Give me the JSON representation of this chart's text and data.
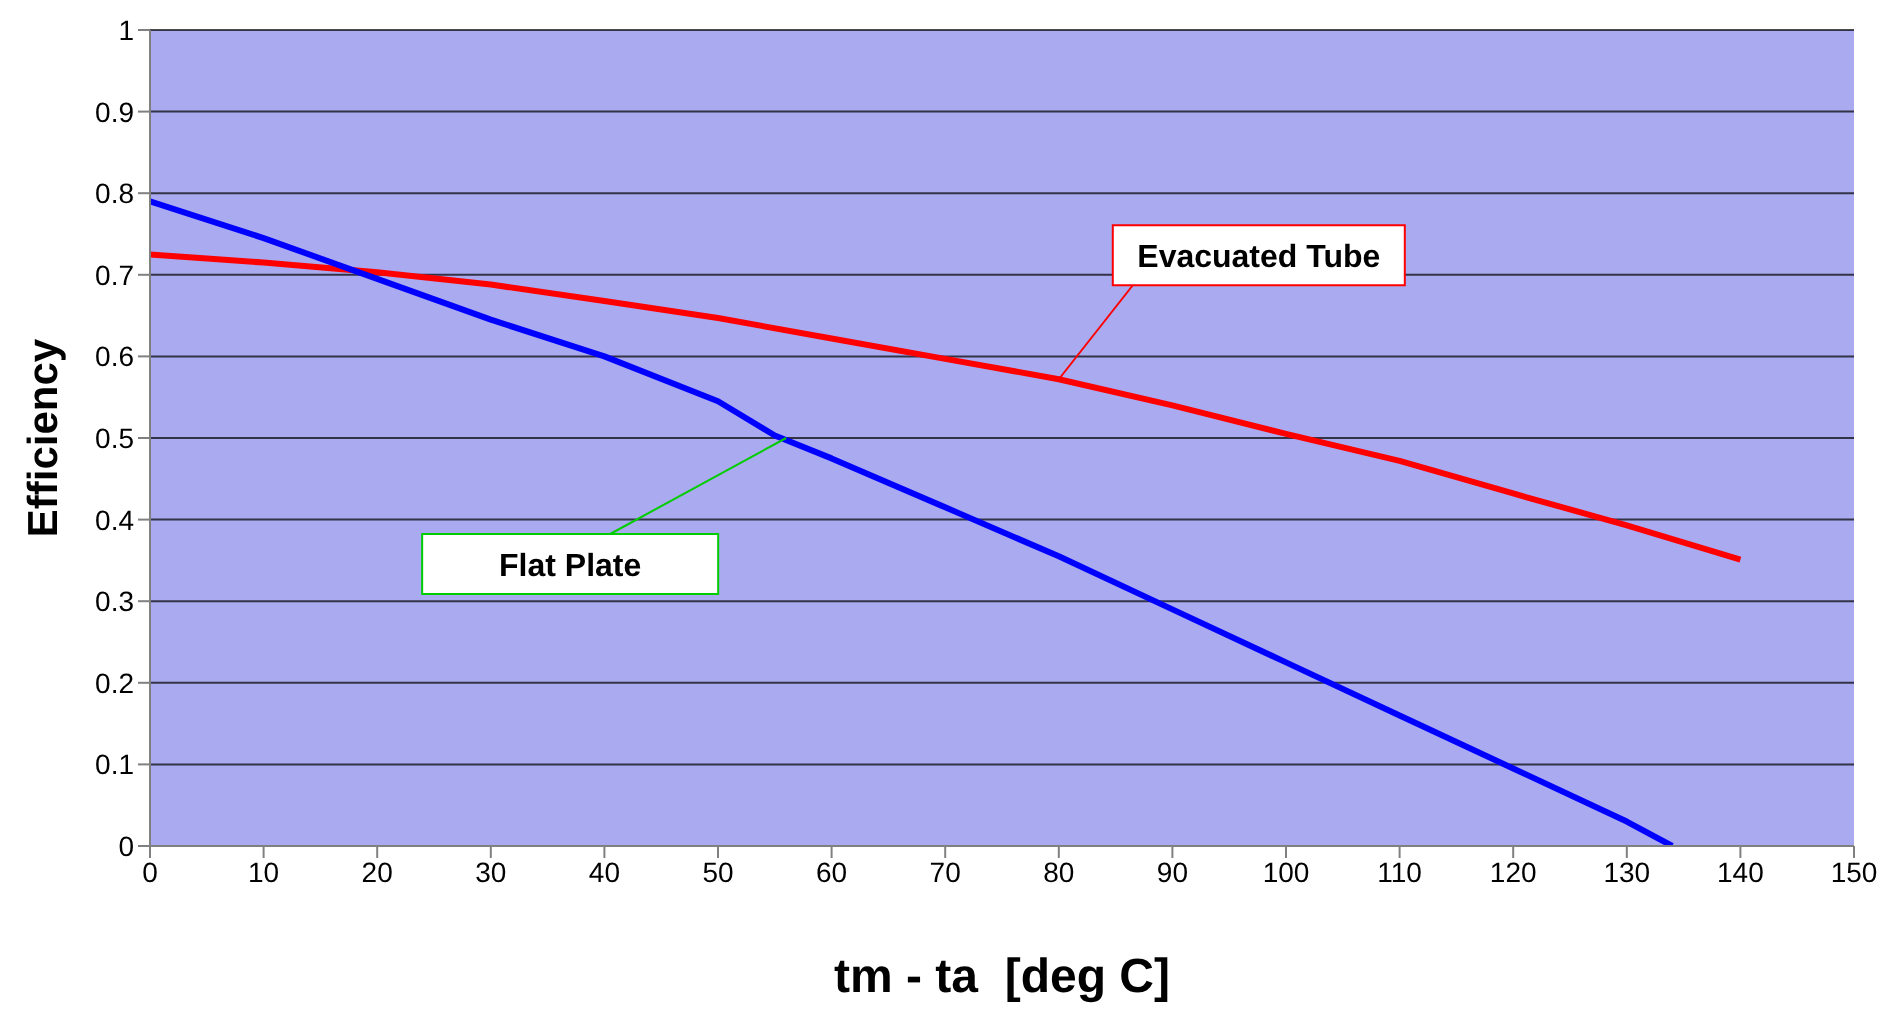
{
  "chart_data": {
    "type": "line",
    "xlabel": "tm - ta  [deg C]",
    "ylabel": "Efficiency",
    "xlim": [
      0,
      150
    ],
    "xticks": [
      0,
      10,
      20,
      30,
      40,
      50,
      60,
      70,
      80,
      90,
      100,
      110,
      120,
      130,
      140,
      150
    ],
    "ylim": [
      0,
      1
    ],
    "yticks": [
      0,
      0.1,
      0.2,
      0.3,
      0.4,
      0.5,
      0.6,
      0.7,
      0.8,
      0.9,
      1
    ],
    "grid": "y",
    "legend": false,
    "marker": "none",
    "line_style": "solid",
    "series": [
      {
        "color": "#ff0000",
        "x": [
          0,
          10,
          20,
          30,
          40,
          50,
          60,
          70,
          80,
          90,
          100,
          110,
          120,
          130,
          140
        ],
        "values": [
          0.725,
          0.715,
          0.703,
          0.688,
          0.668,
          0.647,
          0.622,
          0.597,
          0.572,
          0.54,
          0.505,
          0.472,
          0.432,
          0.393,
          0.351
        ]
      },
      {
        "color": "#0000ff",
        "x": [
          0,
          10,
          20,
          30,
          40,
          50,
          55,
          60,
          70,
          80,
          90,
          100,
          110,
          120,
          130,
          134
        ],
        "values": [
          0.79,
          0.745,
          0.695,
          0.645,
          0.6,
          0.545,
          0.503,
          0.475,
          0.415,
          0.355,
          0.29,
          0.225,
          0.16,
          0.095,
          0.03,
          0
        ]
      }
    ],
    "annotations": [
      {
        "text": "Evacuated Tube",
        "x": 80,
        "y": 0.572
      },
      {
        "text": "Flat Plate",
        "x": 56,
        "y": 0.5
      }
    ]
  }
}
